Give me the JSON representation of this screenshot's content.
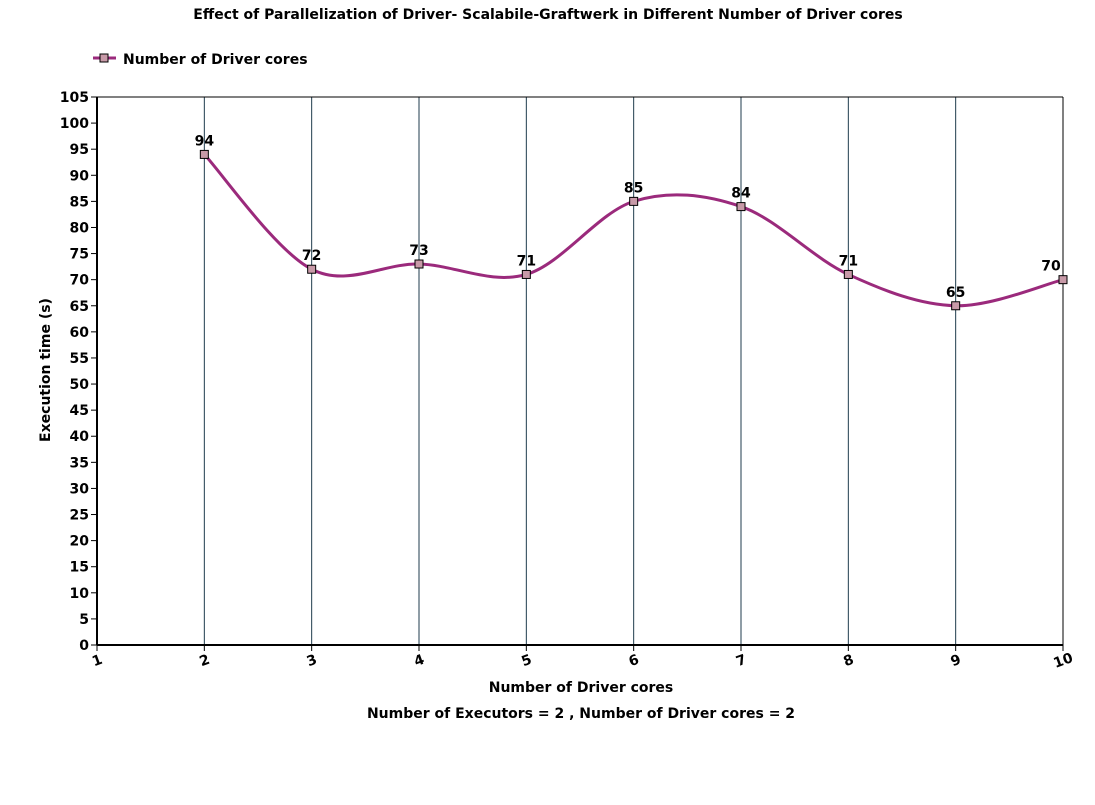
{
  "chart_data": {
    "type": "line",
    "title": "Effect of Parallelization of Driver- Scalabile-Graftwerk in Different Number of Driver cores",
    "subtitle": "Number of Executors = 2 , Number of Driver cores = 2",
    "xlabel": "Number of Driver cores",
    "ylabel": "Execution time (s)",
    "x": [
      2,
      3,
      4,
      5,
      6,
      7,
      8,
      9,
      10
    ],
    "x_ticks": [
      1,
      2,
      3,
      4,
      5,
      6,
      7,
      8,
      9,
      10
    ],
    "xlim": [
      1,
      10
    ],
    "ylim": [
      0,
      105
    ],
    "y_tick_step": 5,
    "grid": "vertical",
    "legend": "top-left",
    "smooth": true,
    "series": [
      {
        "name": "Number of Driver cores",
        "color": "#9b2a7c",
        "marker_color": "#c89aa8",
        "values": [
          94,
          72,
          73,
          71,
          85,
          84,
          71,
          65,
          70
        ],
        "data_labels": [
          "94",
          "72",
          "73",
          "71",
          "85",
          "84",
          "71",
          "65",
          "70"
        ]
      }
    ]
  }
}
